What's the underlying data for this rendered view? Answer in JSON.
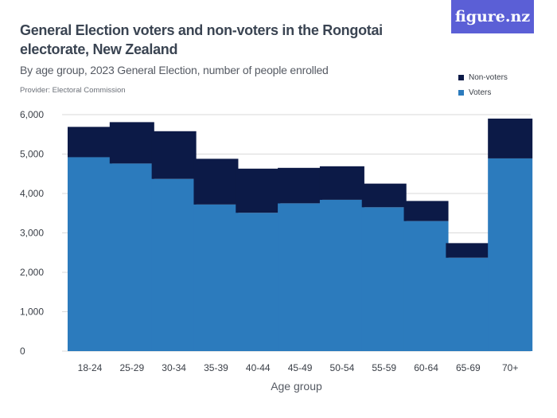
{
  "header": {
    "title": "General Election voters and non-voters in the Rongotai electorate, New Zealand",
    "subtitle": "By age group, 2023 General Election, number of people enrolled",
    "provider": "Provider: Electoral Commission",
    "brand": "figure.nz"
  },
  "colors": {
    "voters": "#2c7bbd",
    "non_voters": "#0c1a47",
    "grid": "#d9d9d9",
    "brand": "#5b5fd6"
  },
  "chart_data": {
    "type": "bar",
    "stacked": true,
    "categories": [
      "18-24",
      "25-29",
      "30-34",
      "35-39",
      "40-44",
      "45-49",
      "50-54",
      "55-59",
      "60-64",
      "65-69",
      "70+"
    ],
    "series": [
      {
        "name": "Voters",
        "values": [
          4920,
          4760,
          4370,
          3720,
          3510,
          3750,
          3840,
          3650,
          3300,
          2370,
          4890
        ]
      },
      {
        "name": "Non-voters",
        "values": [
          770,
          1050,
          1210,
          1160,
          1120,
          900,
          850,
          600,
          510,
          370,
          1010
        ]
      }
    ],
    "xlabel": "Age group",
    "ylabel": "",
    "ylim": [
      0,
      6000
    ],
    "yticks": [
      0,
      1000,
      2000,
      3000,
      4000,
      5000,
      6000
    ],
    "ytick_labels": [
      "0",
      "1,000",
      "2,000",
      "3,000",
      "4,000",
      "5,000",
      "6,000"
    ],
    "grid": true,
    "legend": {
      "position": "top-right",
      "entries": [
        "Non-voters",
        "Voters"
      ]
    }
  }
}
